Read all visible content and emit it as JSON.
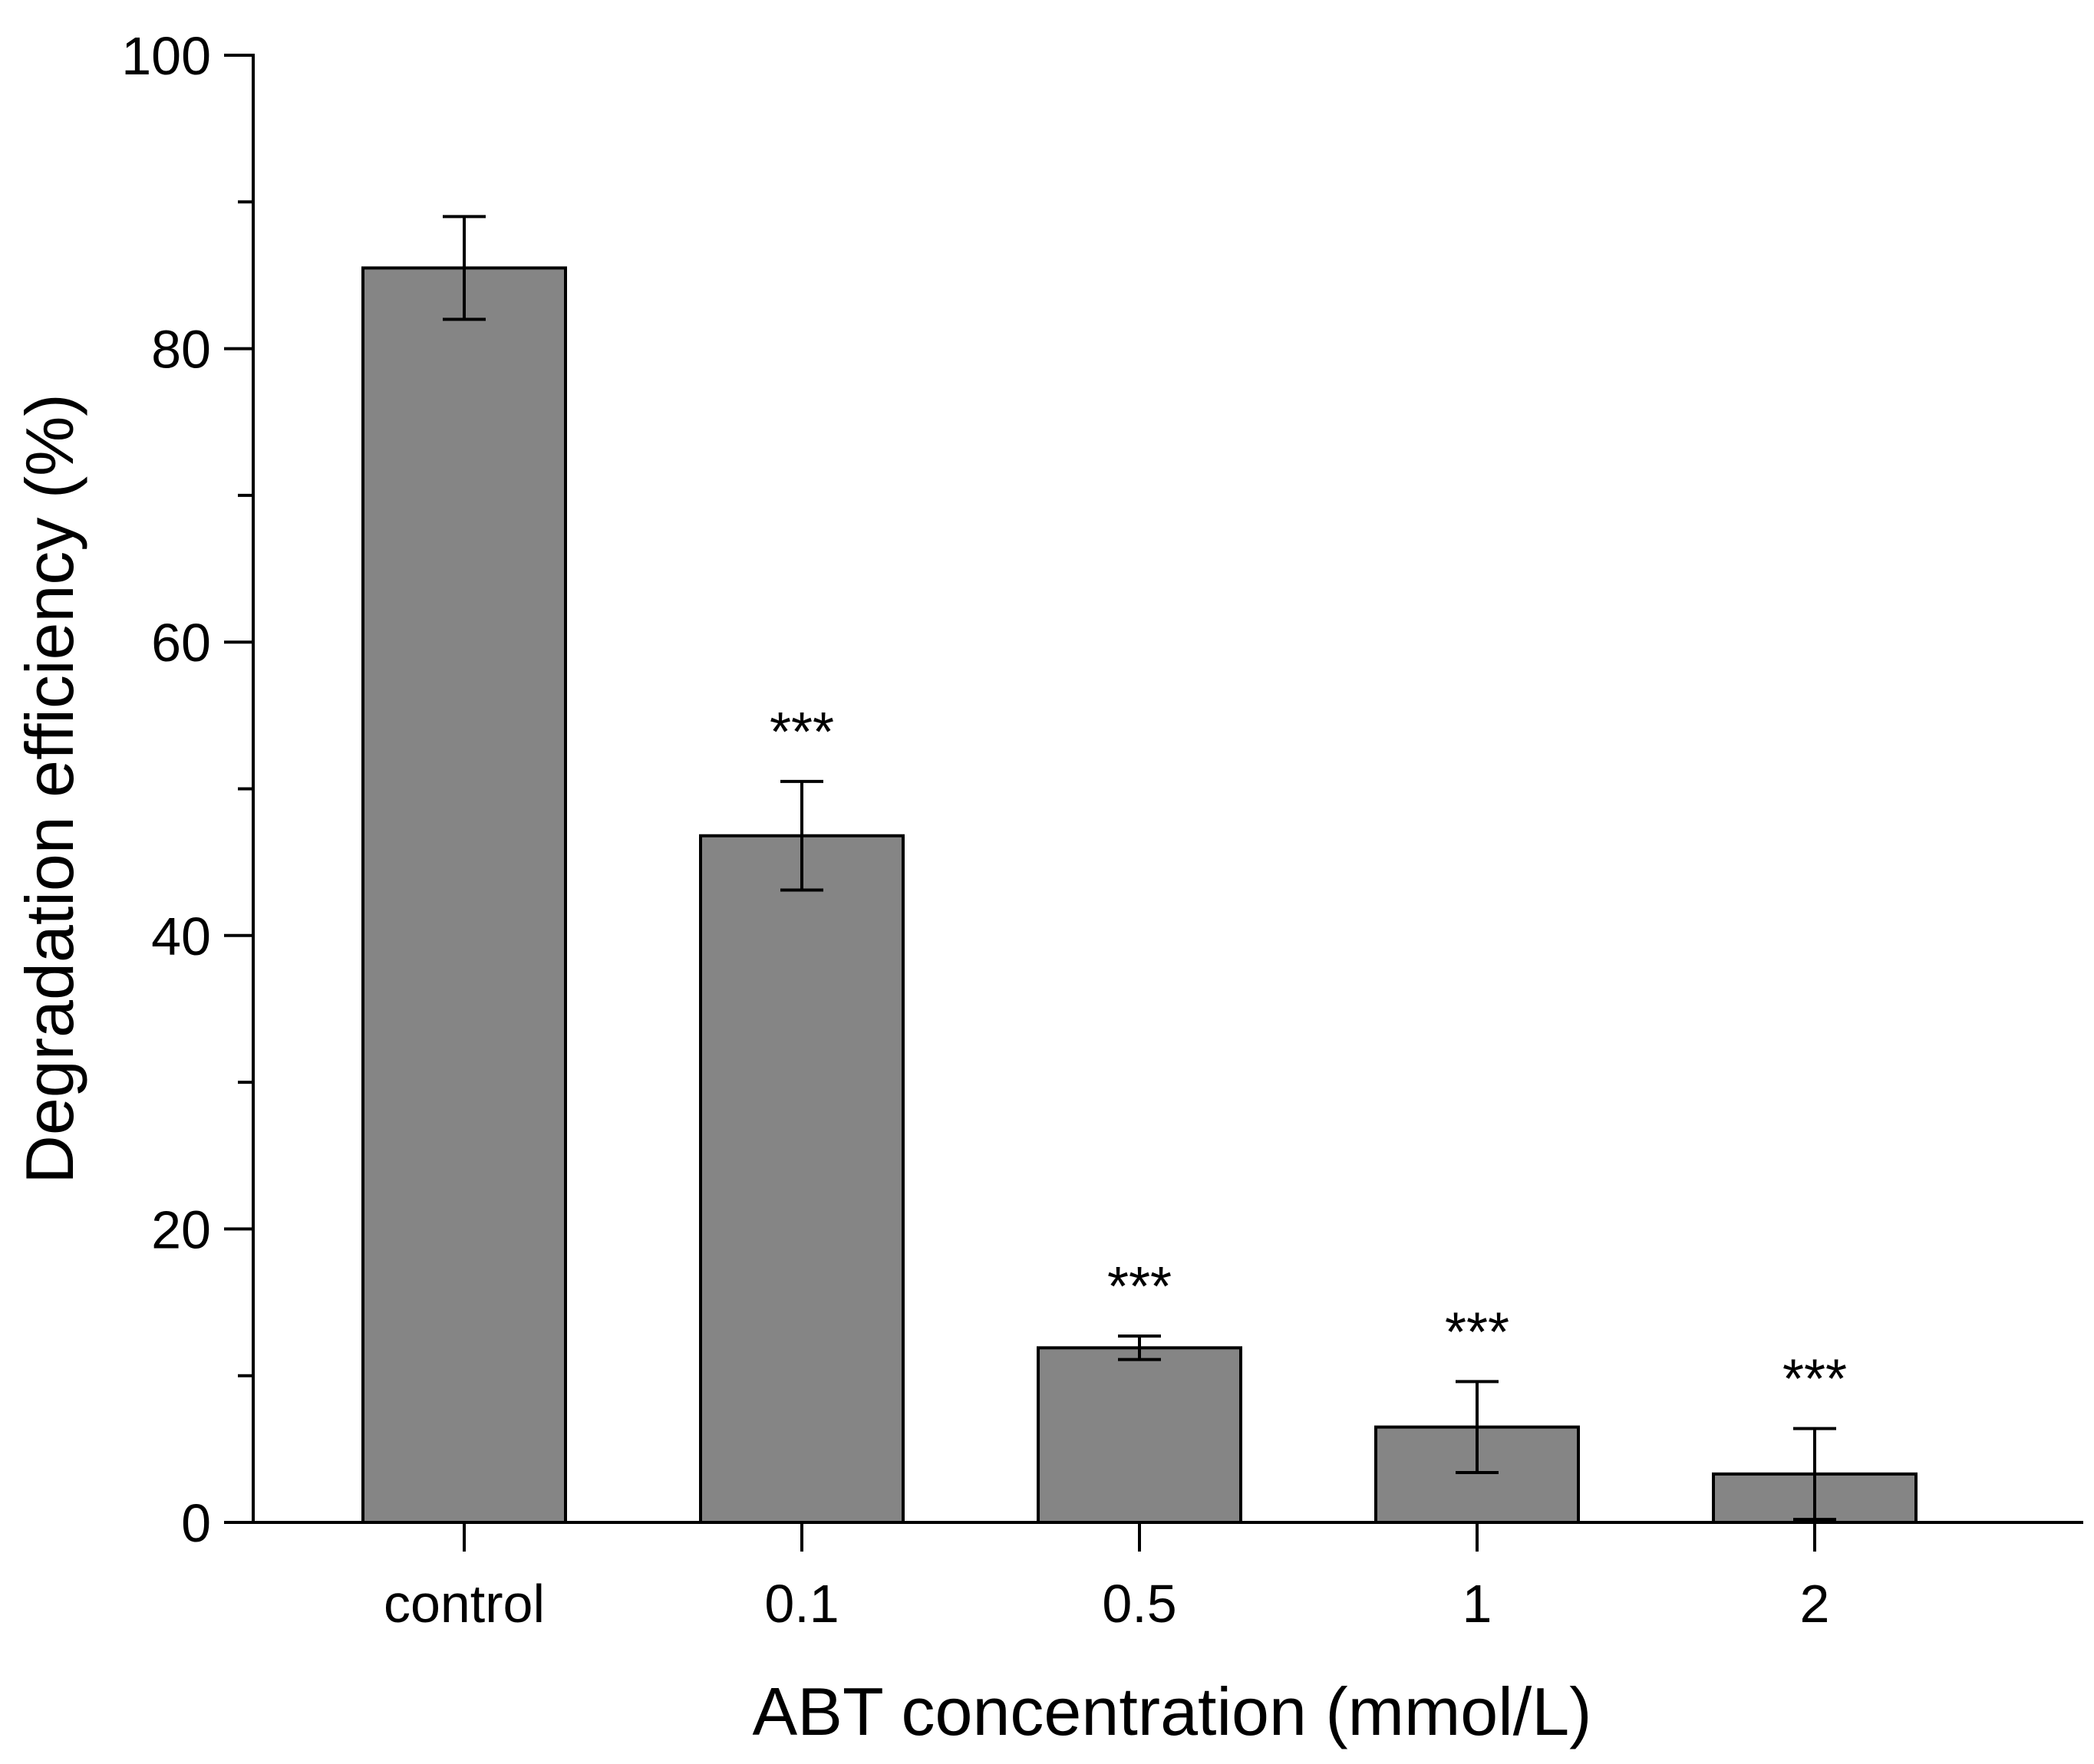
{
  "chart_data": {
    "type": "bar",
    "title": "",
    "xlabel": "ABT concentration (mmol/L)",
    "ylabel": "Degradation efficiency (%)",
    "ylim": [
      0,
      100
    ],
    "yticks": [
      0,
      20,
      40,
      60,
      80,
      100
    ],
    "yminor_ticks": [
      10,
      30,
      50,
      70,
      90
    ],
    "categories": [
      "control",
      "0.1",
      "0.5",
      "1",
      "2"
    ],
    "values": [
      85.5,
      46.8,
      11.9,
      6.5,
      3.3
    ],
    "errors": [
      3.5,
      3.7,
      0.8,
      3.1,
      3.1
    ],
    "significance": [
      "",
      "***",
      "***",
      "***",
      "***"
    ],
    "grid": false,
    "legend": "none",
    "colors": {
      "bar_fill": "#858585",
      "bar_stroke": "#000000",
      "axis": "#000000",
      "background": "#ffffff"
    }
  }
}
